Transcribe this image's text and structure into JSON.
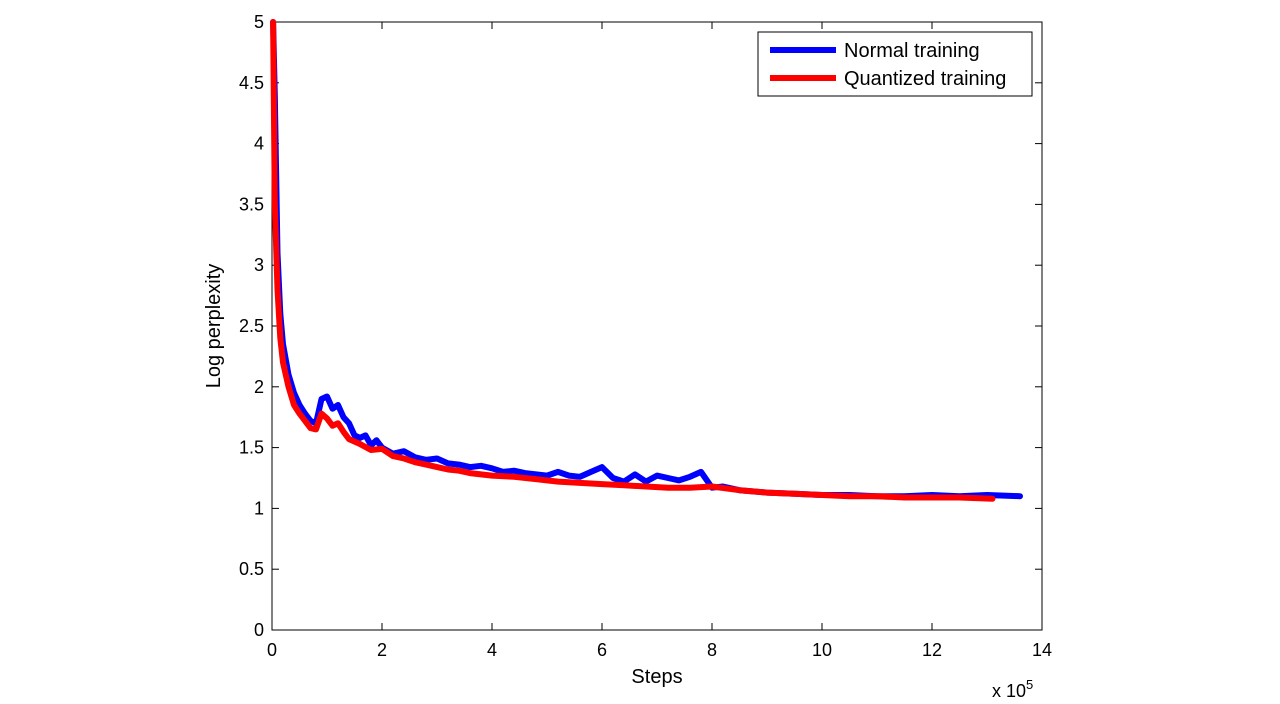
{
  "chart_data": {
    "type": "line",
    "title": "",
    "xlabel": "Steps",
    "ylabel": "Log perplexity",
    "x_multiplier_label": "x 10",
    "x_multiplier_exponent": "5",
    "xlim": [
      0,
      14
    ],
    "ylim": [
      0,
      5
    ],
    "xticks": [
      0,
      2,
      4,
      6,
      8,
      10,
      12,
      14
    ],
    "yticks": [
      0,
      0.5,
      1,
      1.5,
      2,
      2.5,
      3,
      3.5,
      4,
      4.5,
      5
    ],
    "xtick_labels": [
      "0",
      "2",
      "4",
      "6",
      "8",
      "10",
      "12",
      "14"
    ],
    "ytick_labels": [
      "0",
      "0.5",
      "1",
      "1.5",
      "2",
      "2.5",
      "3",
      "3.5",
      "4",
      "4.5",
      "5"
    ],
    "grid": false,
    "legend_position": "top-right",
    "series": [
      {
        "name": "Normal training",
        "color": "#0000ff",
        "points": [
          [
            0.02,
            5.0
          ],
          [
            0.05,
            4.4
          ],
          [
            0.1,
            3.1
          ],
          [
            0.15,
            2.6
          ],
          [
            0.2,
            2.35
          ],
          [
            0.3,
            2.1
          ],
          [
            0.4,
            1.95
          ],
          [
            0.5,
            1.85
          ],
          [
            0.6,
            1.78
          ],
          [
            0.7,
            1.72
          ],
          [
            0.8,
            1.7
          ],
          [
            0.9,
            1.9
          ],
          [
            1.0,
            1.92
          ],
          [
            1.1,
            1.82
          ],
          [
            1.2,
            1.85
          ],
          [
            1.3,
            1.75
          ],
          [
            1.4,
            1.7
          ],
          [
            1.5,
            1.6
          ],
          [
            1.6,
            1.58
          ],
          [
            1.7,
            1.6
          ],
          [
            1.8,
            1.52
          ],
          [
            1.9,
            1.56
          ],
          [
            2.0,
            1.5
          ],
          [
            2.2,
            1.45
          ],
          [
            2.4,
            1.47
          ],
          [
            2.6,
            1.42
          ],
          [
            2.8,
            1.4
          ],
          [
            3.0,
            1.41
          ],
          [
            3.2,
            1.37
          ],
          [
            3.4,
            1.36
          ],
          [
            3.6,
            1.34
          ],
          [
            3.8,
            1.35
          ],
          [
            4.0,
            1.33
          ],
          [
            4.2,
            1.3
          ],
          [
            4.4,
            1.31
          ],
          [
            4.6,
            1.29
          ],
          [
            4.8,
            1.28
          ],
          [
            5.0,
            1.27
          ],
          [
            5.2,
            1.3
          ],
          [
            5.4,
            1.27
          ],
          [
            5.6,
            1.26
          ],
          [
            5.8,
            1.3
          ],
          [
            6.0,
            1.34
          ],
          [
            6.2,
            1.25
          ],
          [
            6.4,
            1.22
          ],
          [
            6.6,
            1.28
          ],
          [
            6.8,
            1.22
          ],
          [
            7.0,
            1.27
          ],
          [
            7.2,
            1.25
          ],
          [
            7.4,
            1.23
          ],
          [
            7.6,
            1.26
          ],
          [
            7.8,
            1.3
          ],
          [
            8.0,
            1.17
          ],
          [
            8.2,
            1.18
          ],
          [
            8.5,
            1.15
          ],
          [
            9.0,
            1.13
          ],
          [
            9.5,
            1.12
          ],
          [
            10.0,
            1.11
          ],
          [
            10.5,
            1.11
          ],
          [
            11.0,
            1.1
          ],
          [
            11.5,
            1.1
          ],
          [
            12.0,
            1.11
          ],
          [
            12.5,
            1.1
          ],
          [
            13.0,
            1.11
          ],
          [
            13.6,
            1.1
          ]
        ]
      },
      {
        "name": "Quantized training",
        "color": "#ff0000",
        "points": [
          [
            0.02,
            5.0
          ],
          [
            0.05,
            3.5
          ],
          [
            0.1,
            2.8
          ],
          [
            0.15,
            2.4
          ],
          [
            0.2,
            2.2
          ],
          [
            0.3,
            2.0
          ],
          [
            0.4,
            1.85
          ],
          [
            0.5,
            1.78
          ],
          [
            0.6,
            1.72
          ],
          [
            0.7,
            1.66
          ],
          [
            0.8,
            1.65
          ],
          [
            0.9,
            1.78
          ],
          [
            1.0,
            1.74
          ],
          [
            1.1,
            1.68
          ],
          [
            1.2,
            1.7
          ],
          [
            1.3,
            1.63
          ],
          [
            1.4,
            1.57
          ],
          [
            1.6,
            1.53
          ],
          [
            1.8,
            1.48
          ],
          [
            2.0,
            1.49
          ],
          [
            2.2,
            1.43
          ],
          [
            2.4,
            1.41
          ],
          [
            2.6,
            1.38
          ],
          [
            2.8,
            1.36
          ],
          [
            3.0,
            1.34
          ],
          [
            3.2,
            1.32
          ],
          [
            3.4,
            1.31
          ],
          [
            3.6,
            1.29
          ],
          [
            3.8,
            1.28
          ],
          [
            4.0,
            1.27
          ],
          [
            4.4,
            1.26
          ],
          [
            4.8,
            1.24
          ],
          [
            5.2,
            1.22
          ],
          [
            5.6,
            1.21
          ],
          [
            6.0,
            1.2
          ],
          [
            6.4,
            1.19
          ],
          [
            6.8,
            1.18
          ],
          [
            7.2,
            1.17
          ],
          [
            7.6,
            1.17
          ],
          [
            8.0,
            1.18
          ],
          [
            8.5,
            1.15
          ],
          [
            9.0,
            1.13
          ],
          [
            9.5,
            1.12
          ],
          [
            10.0,
            1.11
          ],
          [
            10.5,
            1.1
          ],
          [
            11.0,
            1.1
          ],
          [
            11.5,
            1.09
          ],
          [
            12.0,
            1.09
          ],
          [
            12.5,
            1.09
          ],
          [
            13.1,
            1.08
          ]
        ]
      }
    ]
  }
}
